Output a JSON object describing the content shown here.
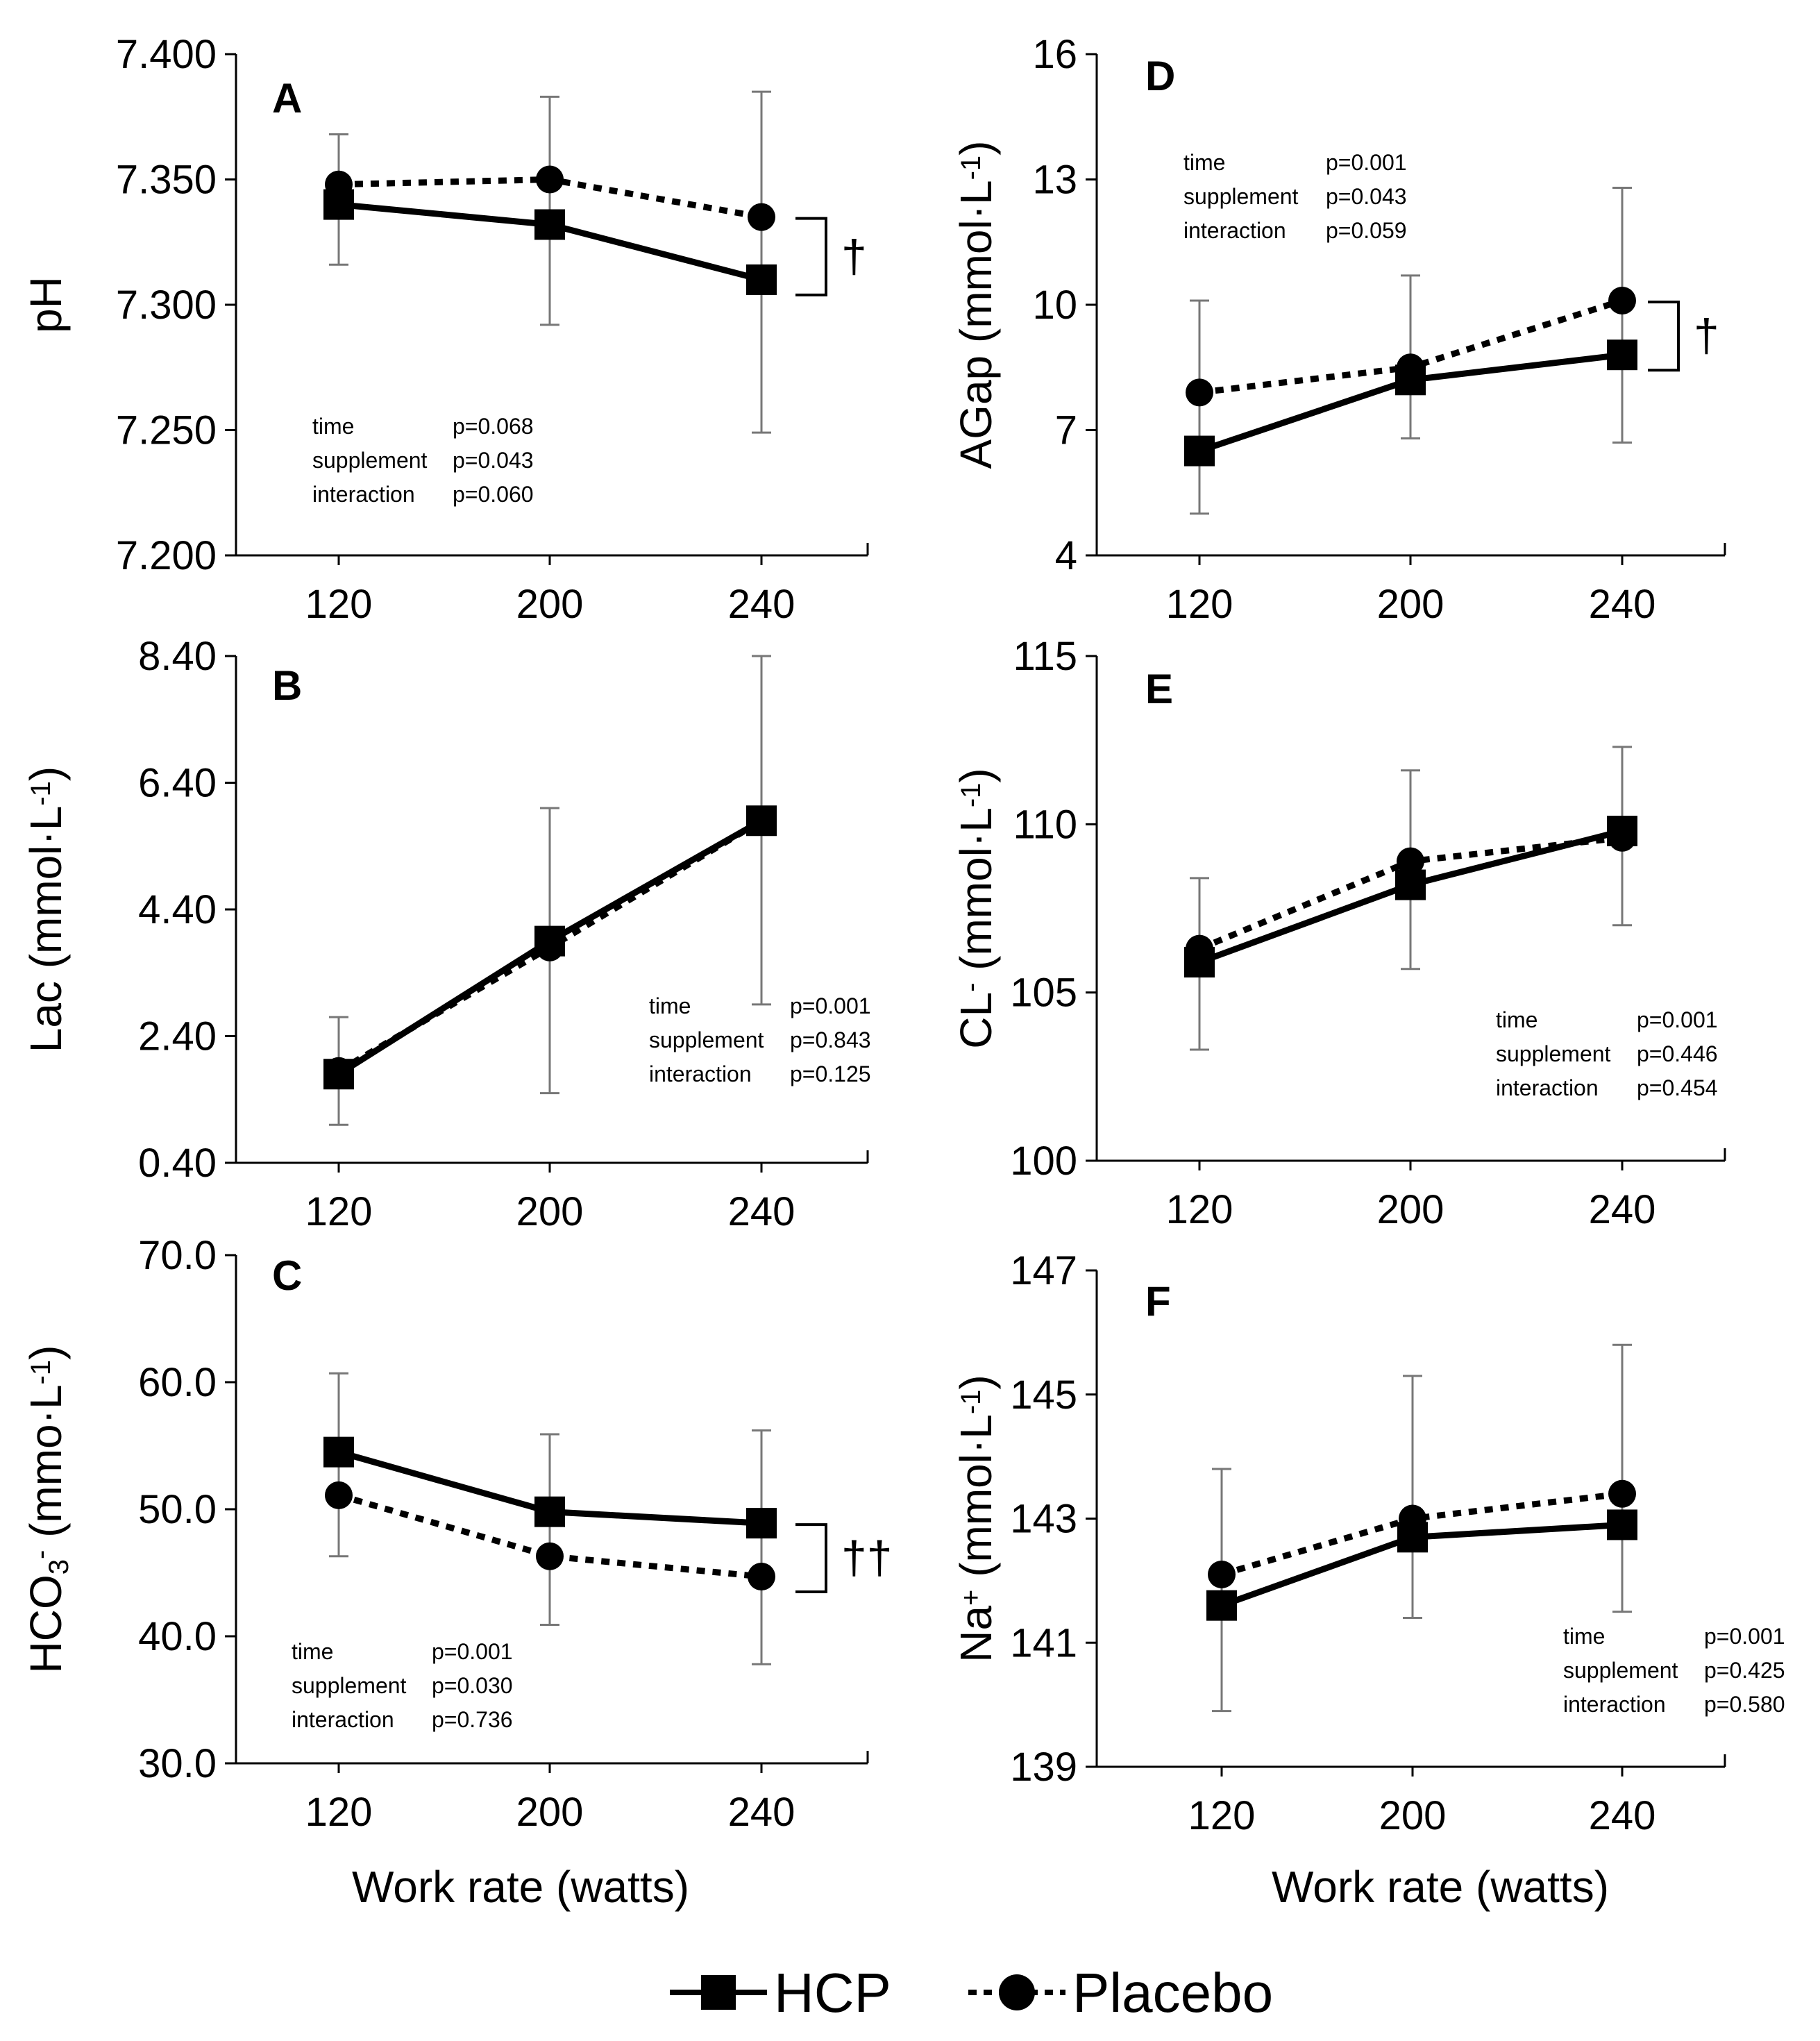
{
  "x_axis_title": "Work rate (watts)",
  "legend": [
    {
      "name": "HCP",
      "marker": "square",
      "line": "solid"
    },
    {
      "name": "Placebo",
      "marker": "circle",
      "line": "dotted"
    }
  ],
  "colors": {
    "ink": "#000000",
    "errorbar": "#777777",
    "axis": "#000000"
  },
  "chart_data": [
    {
      "id": "A",
      "type": "line",
      "letter": "A",
      "ylabel_parts": [
        "pH"
      ],
      "categories": [
        120,
        200,
        240
      ],
      "yticks": [
        "7.400",
        "7.350",
        "7.300",
        "7.250",
        "7.200"
      ],
      "ylim": [
        7.2,
        7.4
      ],
      "series": [
        {
          "name": "HCP",
          "values": [
            7.34,
            7.332,
            7.31
          ],
          "err_low": [
            7.316,
            7.292,
            7.249
          ],
          "err_high": [
            7.368,
            7.383,
            7.385
          ]
        },
        {
          "name": "Placebo",
          "values": [
            7.348,
            7.35,
            7.335
          ],
          "err_low": [
            7.316,
            7.292,
            7.249
          ],
          "err_high": [
            7.368,
            7.383,
            7.385
          ]
        }
      ],
      "stats": [
        [
          "time",
          "p=0.068"
        ],
        [
          "supplement",
          "p=0.043"
        ],
        [
          "interaction",
          "p=0.060"
        ]
      ],
      "significance": "†"
    },
    {
      "id": "B",
      "type": "line",
      "letter": "B",
      "ylabel_parts": [
        "Lac (mmol·L",
        "-1",
        ")"
      ],
      "categories": [
        120,
        200,
        240
      ],
      "yticks": [
        "8.40",
        "6.40",
        "4.40",
        "2.40",
        "0.40"
      ],
      "ylim": [
        0.4,
        8.4
      ],
      "series": [
        {
          "name": "HCP",
          "values": [
            1.8,
            3.9,
            5.8
          ],
          "err_low": [
            1.0,
            1.5,
            2.9
          ],
          "err_high": [
            2.7,
            6.0,
            8.4
          ]
        },
        {
          "name": "Placebo",
          "values": [
            1.85,
            3.8,
            5.8
          ],
          "err_low": [
            1.0,
            1.5,
            2.9
          ],
          "err_high": [
            2.7,
            6.0,
            8.4
          ]
        }
      ],
      "stats": [
        [
          "time",
          "p=0.001"
        ],
        [
          "supplement",
          "p=0.843"
        ],
        [
          "interaction",
          "p=0.125"
        ]
      ],
      "significance": ""
    },
    {
      "id": "C",
      "type": "line",
      "letter": "C",
      "ylabel_parts": [
        "HCO",
        "3",
        "-",
        " (mmo·L",
        "-1",
        ")"
      ],
      "categories": [
        120,
        200,
        240
      ],
      "yticks": [
        "70.0",
        "60.0",
        "50.0",
        "40.0",
        "30.0"
      ],
      "ylim": [
        30,
        70
      ],
      "series": [
        {
          "name": "HCP",
          "values": [
            54.5,
            49.8,
            48.9
          ],
          "err_low": [
            46.3,
            40.9,
            37.8
          ],
          "err_high": [
            60.7,
            55.9,
            56.2
          ]
        },
        {
          "name": "Placebo",
          "values": [
            51.1,
            46.3,
            44.7
          ],
          "err_low": [
            46.3,
            40.9,
            37.8
          ],
          "err_high": [
            60.7,
            55.9,
            56.2
          ]
        }
      ],
      "stats": [
        [
          "time",
          "p=0.001"
        ],
        [
          "supplement",
          "p=0.030"
        ],
        [
          "interaction",
          "p=0.736"
        ]
      ],
      "significance": "††"
    },
    {
      "id": "D",
      "type": "line",
      "letter": "D",
      "ylabel_parts": [
        "AGap (mmol·L",
        "-1",
        ")"
      ],
      "categories": [
        120,
        200,
        240
      ],
      "yticks": [
        "16",
        "13",
        "10",
        "7",
        "4"
      ],
      "ylim": [
        4,
        16
      ],
      "series": [
        {
          "name": "HCP",
          "values": [
            6.5,
            8.2,
            8.8
          ],
          "err_low": [
            5.0,
            6.8,
            6.7
          ],
          "err_high": [
            10.1,
            10.7,
            12.8
          ]
        },
        {
          "name": "Placebo",
          "values": [
            7.9,
            8.5,
            10.1
          ],
          "err_low": [
            5.0,
            6.8,
            6.7
          ],
          "err_high": [
            10.1,
            10.7,
            12.8
          ]
        }
      ],
      "stats": [
        [
          "time",
          "p=0.001"
        ],
        [
          "supplement",
          "p=0.043"
        ],
        [
          "interaction",
          "p=0.059"
        ]
      ],
      "significance": "†"
    },
    {
      "id": "E",
      "type": "line",
      "letter": "E",
      "ylabel_parts": [
        "CL",
        "-",
        " (mmol·L",
        "-1",
        ")"
      ],
      "categories": [
        120,
        200,
        240
      ],
      "yticks": [
        "115",
        "110",
        "105",
        "100"
      ],
      "ylim": [
        100,
        115
      ],
      "series": [
        {
          "name": "HCP",
          "values": [
            105.9,
            108.2,
            109.8
          ],
          "err_low": [
            103.3,
            105.7,
            107.0
          ],
          "err_high": [
            108.4,
            111.6,
            112.3
          ]
        },
        {
          "name": "Placebo",
          "values": [
            106.3,
            108.9,
            109.6
          ],
          "err_low": [
            103.3,
            105.7,
            107.0
          ],
          "err_high": [
            108.4,
            111.6,
            112.3
          ]
        }
      ],
      "stats": [
        [
          "time",
          "p=0.001"
        ],
        [
          "supplement",
          "p=0.446"
        ],
        [
          "interaction",
          "p=0.454"
        ]
      ],
      "significance": ""
    },
    {
      "id": "F",
      "type": "line",
      "letter": "F",
      "ylabel_parts": [
        "Na",
        "+",
        " (mmol·L",
        "-1",
        ")"
      ],
      "categories": [
        120,
        200,
        240
      ],
      "yticks": [
        "147",
        "145",
        "143",
        "141",
        "139"
      ],
      "ylim": [
        139,
        147
      ],
      "series": [
        {
          "name": "HCP",
          "values": [
            141.6,
            142.7,
            142.9
          ],
          "err_low": [
            139.9,
            141.4,
            141.5
          ],
          "err_high": [
            143.8,
            145.3,
            145.8
          ]
        },
        {
          "name": "Placebo",
          "values": [
            142.1,
            143.0,
            143.4
          ],
          "err_low": [
            139.9,
            141.4,
            141.5
          ],
          "err_high": [
            143.8,
            145.3,
            145.8
          ]
        }
      ],
      "stats": [
        [
          "time",
          "p=0.001"
        ],
        [
          "supplement",
          "p=0.425"
        ],
        [
          "interaction",
          "p=0.580"
        ]
      ],
      "significance": ""
    }
  ]
}
